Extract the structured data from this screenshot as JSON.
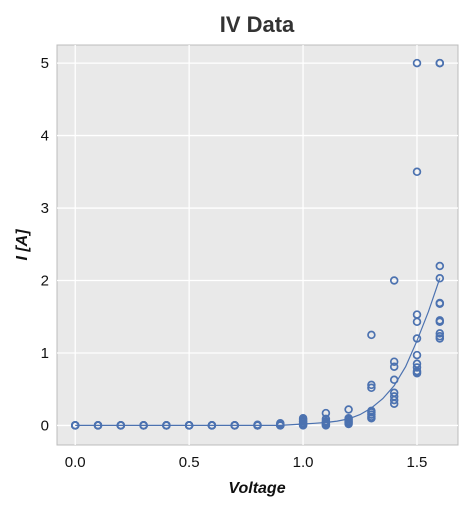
{
  "chart_data": {
    "type": "scatter",
    "title": "IV Data",
    "xlabel": "Voltage",
    "ylabel": "I [A]",
    "xlim": [
      -0.08,
      1.68
    ],
    "ylim": [
      -0.27,
      5.25
    ],
    "xticks": [
      0.0,
      0.5,
      1.0,
      1.5
    ],
    "xtick_labels": [
      "0.0",
      "0.5",
      "1.0",
      "1.5"
    ],
    "yticks": [
      0,
      1,
      2,
      3,
      4,
      5
    ],
    "ytick_labels": [
      "0",
      "1",
      "2",
      "3",
      "4",
      "5"
    ],
    "grid": true,
    "colors": {
      "background": "#e9e9e9",
      "grid": "#ffffff",
      "series": "#4c72b0",
      "frame": "#bcbcbc"
    },
    "series": [
      {
        "kind": "scatter",
        "marker": "open-circle",
        "x": [
          0.0,
          0.0,
          0.0,
          0.0,
          0.0,
          0.0,
          0.1,
          0.1,
          0.1,
          0.1,
          0.1,
          0.1,
          0.2,
          0.2,
          0.2,
          0.2,
          0.2,
          0.2,
          0.3,
          0.3,
          0.3,
          0.3,
          0.3,
          0.3,
          0.4,
          0.4,
          0.4,
          0.4,
          0.4,
          0.4,
          0.5,
          0.5,
          0.5,
          0.5,
          0.5,
          0.5,
          0.6,
          0.6,
          0.6,
          0.6,
          0.6,
          0.6,
          0.7,
          0.7,
          0.7,
          0.7,
          0.7,
          0.7,
          0.8,
          0.8,
          0.8,
          0.8,
          0.8,
          0.8,
          0.9,
          0.9,
          0.9,
          0.9,
          0.9,
          0.9,
          1.0,
          1.0,
          1.0,
          1.0,
          1.0,
          1.0,
          1.0,
          1.0,
          1.1,
          1.1,
          1.1,
          1.1,
          1.1,
          1.1,
          1.1,
          1.2,
          1.2,
          1.2,
          1.2,
          1.2,
          1.2,
          1.3,
          1.3,
          1.3,
          1.3,
          1.3,
          1.3,
          1.3,
          1.3,
          1.4,
          1.4,
          1.4,
          1.4,
          1.4,
          1.4,
          1.4,
          1.4,
          1.5,
          1.5,
          1.5,
          1.5,
          1.5,
          1.5,
          1.5,
          1.5,
          1.5,
          1.5,
          1.5,
          1.6,
          1.6,
          1.6,
          1.6,
          1.6,
          1.6,
          1.6,
          1.6,
          1.6,
          1.6,
          1.6
        ],
        "y": [
          0.0,
          0.0,
          0.0,
          0.0,
          0.0,
          0.0,
          0.0,
          0.0,
          0.0,
          0.0,
          0.0,
          0.0,
          0.0,
          0.0,
          0.0,
          0.0,
          0.0,
          0.0,
          0.0,
          0.0,
          0.0,
          0.0,
          0.0,
          0.0,
          0.0,
          0.0,
          0.0,
          0.0,
          0.0,
          0.0,
          0.0,
          0.0,
          0.0,
          0.0,
          0.0,
          0.0,
          0.0,
          0.0,
          0.0,
          0.0,
          0.0,
          0.0,
          0.0,
          0.0,
          0.0,
          0.0,
          0.0,
          0.0,
          0.0,
          0.0,
          0.0,
          0.0,
          0.0,
          0.01,
          0.0,
          0.0,
          0.0,
          0.01,
          0.02,
          0.03,
          0.0,
          0.01,
          0.02,
          0.03,
          0.05,
          0.06,
          0.08,
          0.1,
          0.0,
          0.01,
          0.02,
          0.04,
          0.06,
          0.09,
          0.17,
          0.02,
          0.04,
          0.06,
          0.08,
          0.1,
          0.22,
          0.1,
          0.12,
          0.15,
          0.18,
          0.2,
          0.52,
          0.56,
          1.25,
          0.3,
          0.35,
          0.4,
          0.45,
          0.63,
          0.81,
          0.88,
          2.0,
          0.72,
          0.73,
          0.75,
          0.8,
          0.85,
          0.97,
          1.2,
          1.43,
          1.53,
          3.5,
          5.0,
          1.2,
          1.23,
          1.27,
          1.43,
          1.45,
          1.68,
          1.69,
          2.03,
          2.2,
          5.0,
          5.0
        ]
      },
      {
        "kind": "line",
        "x": [
          0.0,
          0.1,
          0.2,
          0.3,
          0.4,
          0.5,
          0.6,
          0.7,
          0.8,
          0.9,
          1.0,
          1.05,
          1.1,
          1.15,
          1.2,
          1.25,
          1.3,
          1.35,
          1.4,
          1.45,
          1.5,
          1.55,
          1.6
        ],
        "y": [
          0.0,
          0.0,
          0.0,
          0.0,
          0.0,
          0.0,
          0.0,
          0.0,
          0.0,
          0.0,
          0.02,
          0.03,
          0.04,
          0.06,
          0.09,
          0.15,
          0.24,
          0.37,
          0.55,
          0.81,
          1.17,
          1.57,
          2.03
        ]
      }
    ]
  }
}
